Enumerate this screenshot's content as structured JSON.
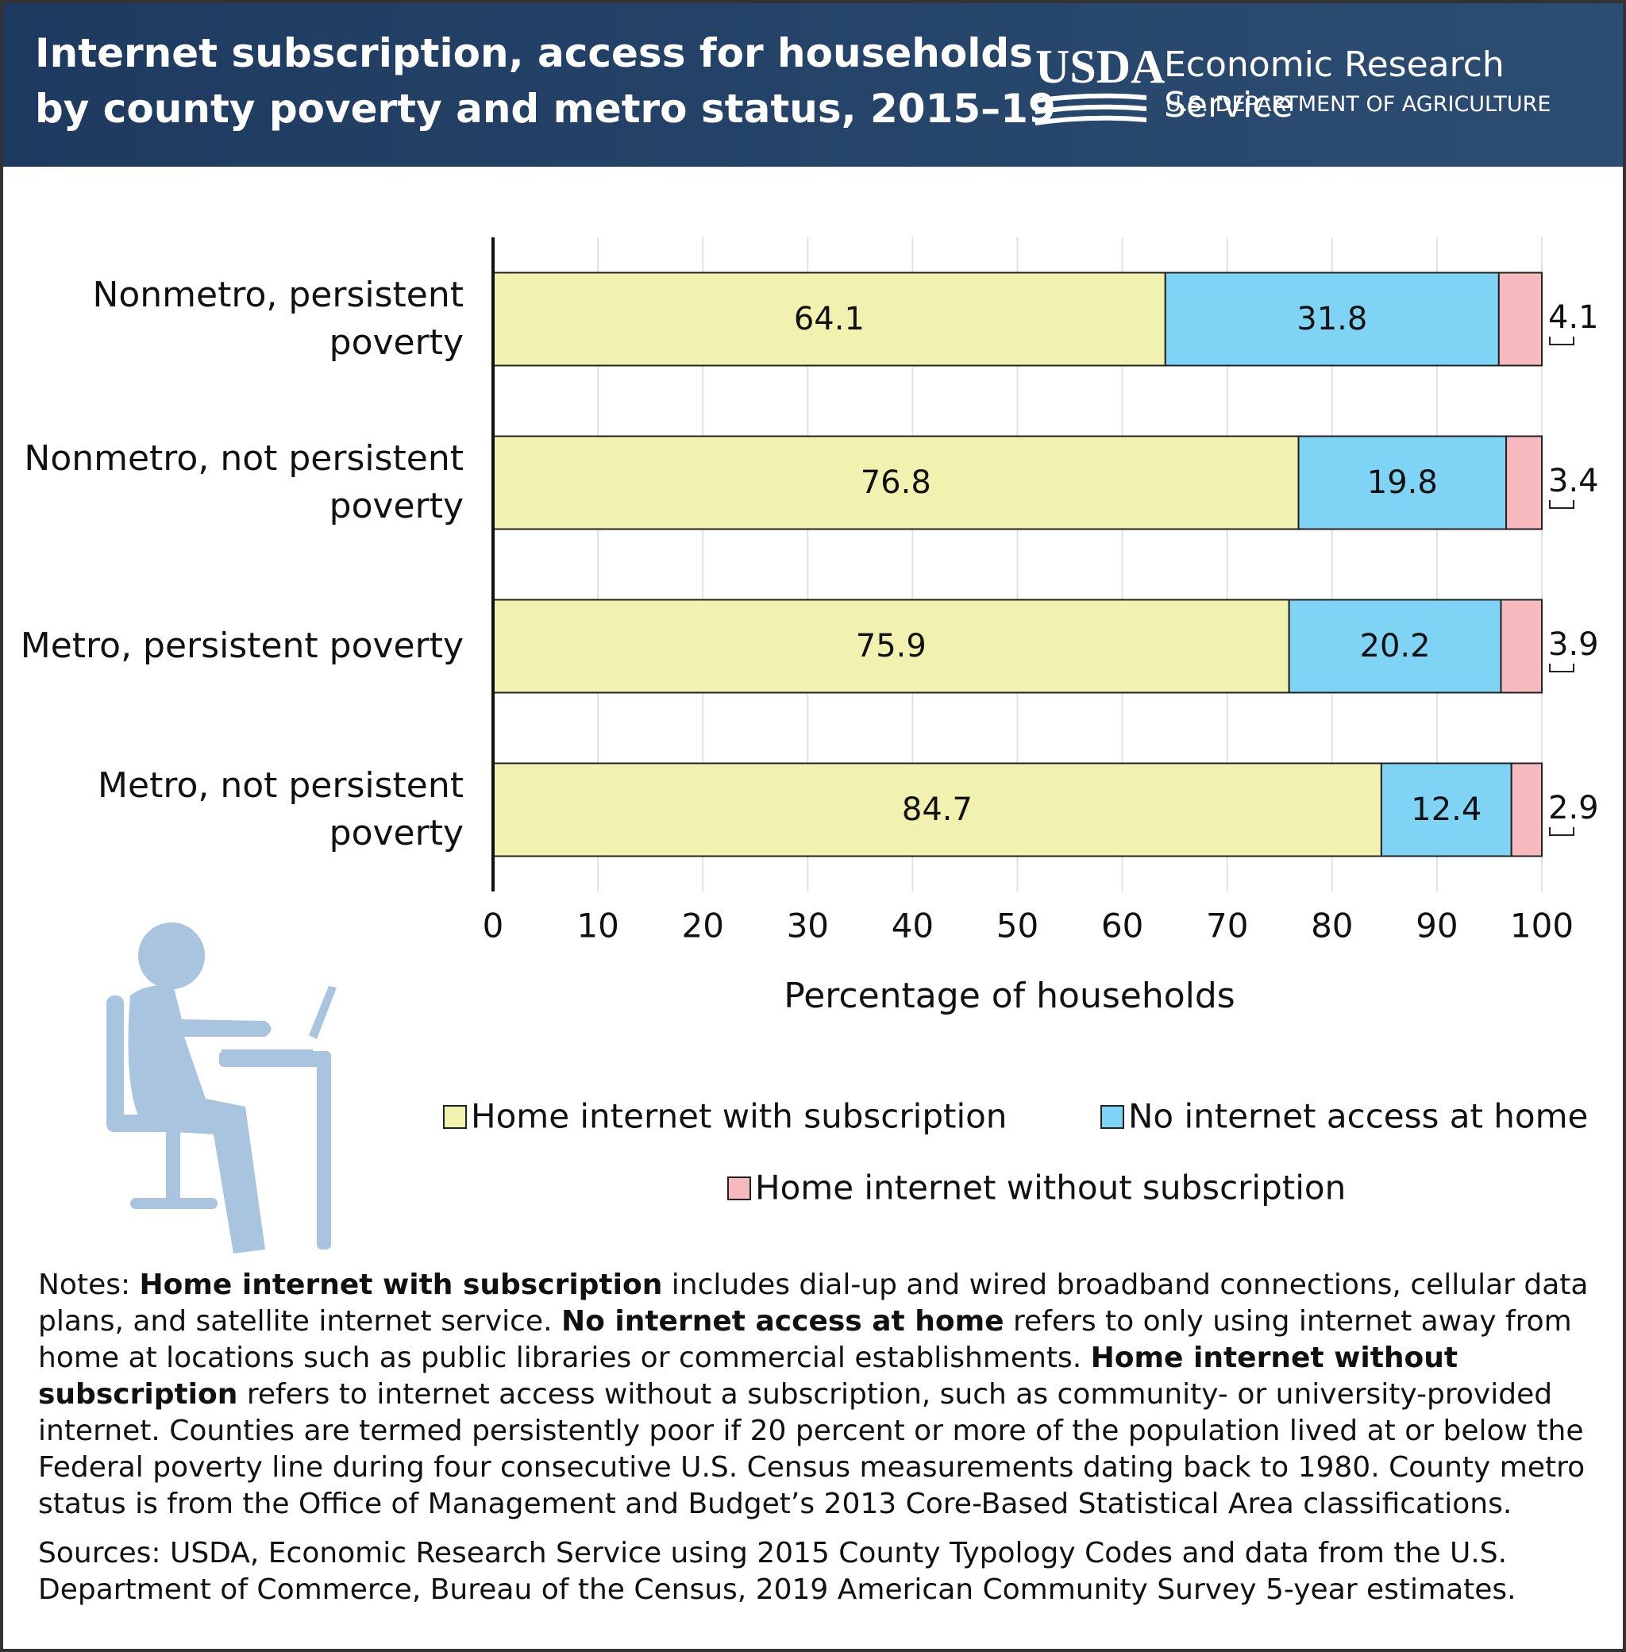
{
  "header": {
    "title": "Internet subscription, access for households\nby county poverty and metro status, 2015–19",
    "logo": "USDA",
    "agency": "Economic Research Service",
    "department": "U.S. DEPARTMENT OF AGRICULTURE"
  },
  "chart_data": {
    "type": "stacked-barh",
    "categories": [
      "Nonmetro, persistent\npoverty",
      "Nonmetro, not persistent\npoverty",
      "Metro, persistent poverty",
      "Metro, not persistent\npoverty"
    ],
    "series": [
      {
        "name": "Home internet with subscription",
        "color": "#f2f2b0",
        "values": [
          64.1,
          76.8,
          75.9,
          84.7
        ]
      },
      {
        "name": "No internet access at home",
        "color": "#7fd3f5",
        "values": [
          31.8,
          19.8,
          20.2,
          12.4
        ]
      },
      {
        "name": "Home internet without subscription",
        "color": "#f6b9bd",
        "values": [
          4.1,
          3.4,
          3.9,
          2.9
        ]
      }
    ],
    "xlim": [
      0,
      100
    ],
    "xticks": [
      0,
      10,
      20,
      30,
      40,
      50,
      60,
      70,
      80,
      90,
      100
    ],
    "xlabel": "Percentage of households",
    "grid": true
  },
  "notes": [
    {
      "text": "Notes: ",
      "bold": false
    },
    {
      "text": "Home internet with subscription",
      "bold": true
    },
    {
      "text": " includes dial-up and wired broadband connections, cellular data plans, and satellite internet service. ",
      "bold": false
    },
    {
      "text": "No internet access at home",
      "bold": true
    },
    {
      "text": " refers to only using internet away from home at locations such as public libraries or commercial establishments. ",
      "bold": false
    },
    {
      "text": "Home internet without subscription",
      "bold": true
    },
    {
      "text": " refers to internet access without a subscription, such as community- or university-provided internet. Counties are termed persistently poor if 20 percent or more of the population lived at or below the Federal poverty line during four consecutive U.S. Census measurements dating back to 1980. County metro status is from the Office of Management and Budget’s 2013 Core-Based Statistical Area classifications.",
      "bold": false
    }
  ],
  "sources": "Sources: USDA, Economic Research Service using 2015 County Typology Codes and data from the U.S. Department of Commerce, Bureau of the Census, 2019 American Community Survey 5-year estimates."
}
